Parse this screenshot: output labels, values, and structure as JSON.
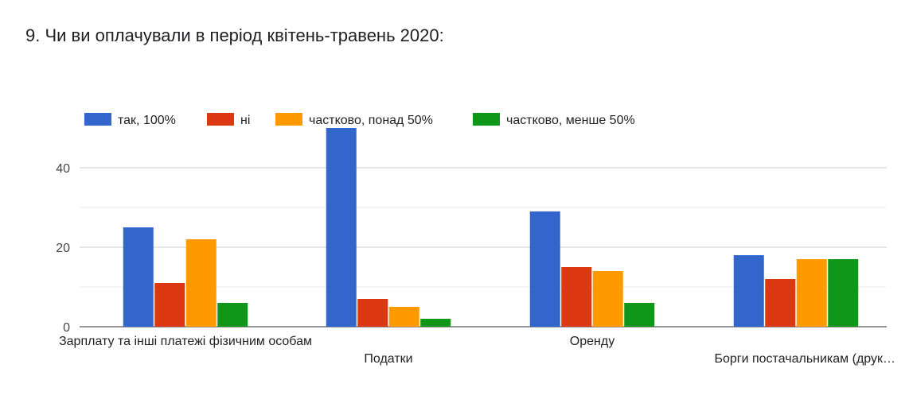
{
  "question": {
    "title": "9. Чи ви оплачували в період квітень-травень 2020:"
  },
  "chart_data": {
    "type": "bar",
    "title": "9. Чи ви оплачували в період квітень-травень 2020:",
    "categories": [
      "Зарплату та інші платежі фізичним особам",
      "Податки",
      "Оренду",
      "Борги постачальникам (друк…"
    ],
    "series": [
      {
        "name": "так, 100%",
        "color": "#3366cc",
        "values": [
          25,
          50,
          29,
          18
        ]
      },
      {
        "name": "ні",
        "color": "#dc3912",
        "values": [
          11,
          7,
          15,
          12
        ]
      },
      {
        "name": "частково, понад 50%",
        "color": "#ff9900",
        "values": [
          22,
          5,
          14,
          17
        ]
      },
      {
        "name": "частково, менше 50%",
        "color": "#109618",
        "values": [
          6,
          2,
          6,
          17
        ]
      }
    ],
    "y_ticks": [
      "0",
      "20",
      "40"
    ],
    "ylim": [
      0,
      50
    ],
    "grid": true,
    "legend_position": "top-left"
  }
}
